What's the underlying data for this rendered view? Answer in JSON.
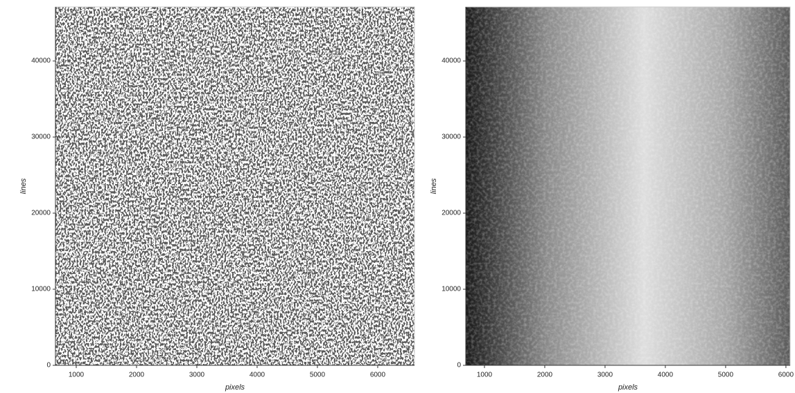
{
  "chart_data": [
    {
      "type": "image",
      "xlabel": "pixels",
      "ylabel": "lines",
      "xlim": [
        655,
        6610
      ],
      "ylim": [
        0,
        47100
      ],
      "xticks": [
        1000,
        2000,
        3000,
        4000,
        5000,
        6000
      ],
      "yticks": [
        0,
        10000,
        20000,
        30000,
        40000
      ],
      "colormap": "speckle"
    },
    {
      "type": "image",
      "xlabel": "pixels",
      "ylabel": "lines",
      "xlim": [
        690,
        6070
      ],
      "ylim": [
        0,
        47100
      ],
      "xticks": [
        1000,
        2000,
        3000,
        4000,
        5000,
        6000
      ],
      "yticks": [
        0,
        10000,
        20000,
        30000,
        40000
      ],
      "colormap": "shaded"
    }
  ]
}
